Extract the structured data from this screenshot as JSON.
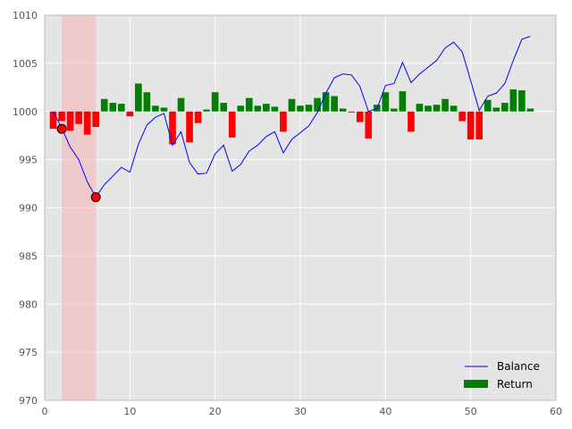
{
  "chart_data": {
    "type": "bar",
    "title": "",
    "xlabel": "",
    "ylabel": "",
    "xlim": [
      0,
      60
    ],
    "ylim": [
      970,
      1010
    ],
    "xticks": [
      0,
      10,
      20,
      30,
      40,
      50,
      60
    ],
    "yticks": [
      970,
      975,
      980,
      985,
      990,
      995,
      1000,
      1005,
      1010
    ],
    "grid": true,
    "background": "#e5e5e5",
    "legend_placement": "lower-right",
    "baseline": 1000,
    "drawdown_span": [
      2,
      6
    ],
    "drawdown_color": "#f4b8b8",
    "series": [
      {
        "name": "Balance",
        "type": "line",
        "color": "#0000ff",
        "x": [
          1,
          2,
          3,
          4,
          5,
          6,
          7,
          8,
          9,
          10,
          11,
          12,
          13,
          14,
          15,
          16,
          17,
          18,
          19,
          20,
          21,
          22,
          23,
          24,
          25,
          26,
          27,
          28,
          29,
          30,
          31,
          32,
          33,
          34,
          35,
          36,
          37,
          38,
          39,
          40,
          41,
          42,
          43,
          44,
          45,
          46,
          47,
          48,
          49,
          50,
          51,
          52,
          53,
          54,
          55,
          56,
          57
        ],
        "values": [
          1000.0,
          998.3,
          996.3,
          995.0,
          992.7,
          991.1,
          992.4,
          993.3,
          994.2,
          993.7,
          996.6,
          998.6,
          999.4,
          999.8,
          996.5,
          997.9,
          994.7,
          993.5,
          993.6,
          995.6,
          996.5,
          993.8,
          994.5,
          995.9,
          996.5,
          997.4,
          997.9,
          995.7,
          997.1,
          997.8,
          998.5,
          999.9,
          1001.9,
          1003.5,
          1003.9,
          1003.8,
          1002.6,
          1000.0,
          1000.3,
          1002.7,
          1002.9,
          1005.1,
          1003.0,
          1003.9,
          1004.6,
          1005.3,
          1006.6,
          1007.2,
          1006.2,
          1003.2,
          1000.1,
          1001.6,
          1001.9,
          1002.9,
          1005.3,
          1007.5,
          1007.8
        ]
      },
      {
        "name": "Return",
        "type": "bar",
        "positive_color": "#008000",
        "negative_color": "#ff0000",
        "x": [
          1,
          2,
          3,
          4,
          5,
          6,
          7,
          8,
          9,
          10,
          11,
          12,
          13,
          14,
          15,
          16,
          17,
          18,
          19,
          20,
          21,
          22,
          23,
          24,
          25,
          26,
          27,
          28,
          29,
          30,
          31,
          32,
          33,
          34,
          35,
          36,
          37,
          38,
          39,
          40,
          41,
          42,
          43,
          44,
          45,
          46,
          47,
          48,
          49,
          50,
          51,
          52,
          53,
          54,
          55,
          56,
          57
        ],
        "values": [
          -1.8,
          -1.0,
          -2.0,
          -1.3,
          -2.4,
          -1.6,
          1.3,
          0.9,
          0.8,
          -0.5,
          2.9,
          2.0,
          0.6,
          0.4,
          -3.4,
          1.4,
          -3.2,
          -1.2,
          0.2,
          2.0,
          0.9,
          -2.7,
          0.6,
          1.4,
          0.6,
          0.8,
          0.5,
          -2.1,
          1.3,
          0.6,
          0.7,
          1.4,
          2.0,
          1.6,
          0.3,
          -0.1,
          -1.1,
          -2.8,
          0.7,
          2.0,
          0.3,
          2.1,
          -2.1,
          0.8,
          0.6,
          0.7,
          1.3,
          0.6,
          -1.0,
          -2.9,
          -2.9,
          1.2,
          0.4,
          0.9,
          2.3,
          2.2,
          0.3
        ]
      }
    ],
    "markers": [
      {
        "x": 2,
        "y": 998.2,
        "color": "#ff0000"
      },
      {
        "x": 6,
        "y": 991.1,
        "color": "#ff0000"
      }
    ]
  }
}
